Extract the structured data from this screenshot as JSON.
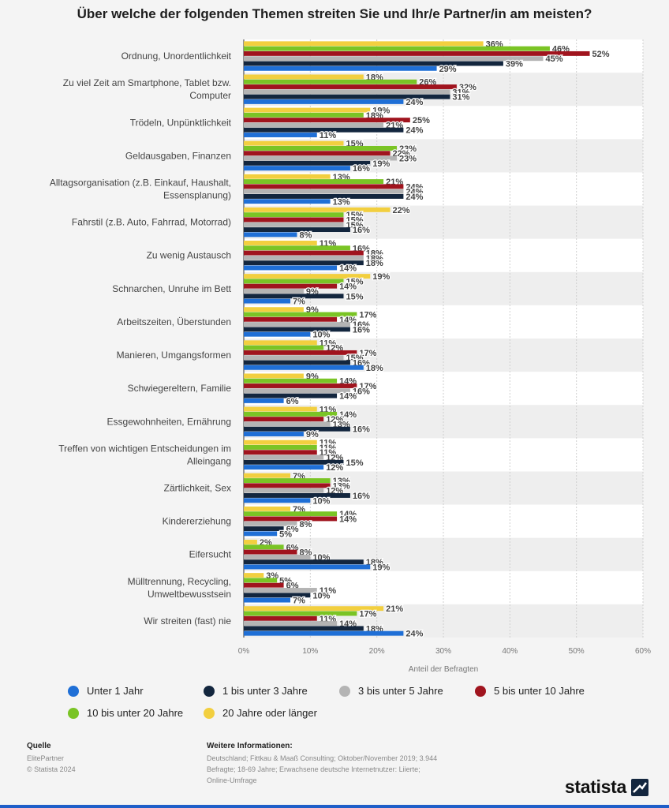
{
  "chart_data": {
    "type": "bar",
    "orientation": "horizontal",
    "title": "Über welche der folgenden Themen streiten Sie und Ihr/e Partner/in am meisten?",
    "xlabel": "Anteil der Befragten",
    "xlim": [
      0,
      60
    ],
    "ticks": [
      "0%",
      "10%",
      "20%",
      "30%",
      "40%",
      "50%",
      "60%"
    ],
    "unit": "%",
    "categories": [
      "Ordnung, Unordentlichkeit",
      "Zu viel Zeit am Smartphone, Tablet bzw. Computer",
      "Trödeln, Unpünktlichkeit",
      "Geldausgaben, Finanzen",
      "Alltagsorganisation (z.B. Einkauf, Haushalt, Essensplanung)",
      "Fahrstil (z.B. Auto, Fahrrad, Motorrad)",
      "Zu wenig Austausch",
      "Schnarchen, Unruhe im Bett",
      "Arbeitszeiten, Überstunden",
      "Manieren, Umgangsformen",
      "Schwiegereltern, Familie",
      "Essgewohnheiten, Ernährung",
      "Treffen von wichtigen Entscheidungen im Alleingang",
      "Zärtlichkeit, Sex",
      "Kindererziehung",
      "Eifersucht",
      "Mülltrennung, Recycling, Umweltbewusstsein",
      "Wir streiten (fast) nie"
    ],
    "category_lines": [
      [
        "Ordnung, Unordentlichkeit"
      ],
      [
        "Zu viel Zeit am Smartphone, Tablet bzw.",
        "Computer"
      ],
      [
        "Trödeln, Unpünktlichkeit"
      ],
      [
        "Geldausgaben, Finanzen"
      ],
      [
        "Alltagsorganisation (z.B. Einkauf, Haushalt,",
        "Essensplanung)"
      ],
      [
        "Fahrstil (z.B. Auto, Fahrrad, Motorrad)"
      ],
      [
        "Zu wenig Austausch"
      ],
      [
        "Schnarchen, Unruhe im Bett"
      ],
      [
        "Arbeitszeiten, Überstunden"
      ],
      [
        "Manieren, Umgangsformen"
      ],
      [
        "Schwiegereltern, Familie"
      ],
      [
        "Essgewohnheiten, Ernährung"
      ],
      [
        "Treffen von wichtigen Entscheidungen im",
        "Alleingang"
      ],
      [
        "Zärtlichkeit, Sex"
      ],
      [
        "Kindererziehung"
      ],
      [
        "Eifersucht"
      ],
      [
        "Mülltrennung, Recycling,",
        "Umweltbewusstsein"
      ],
      [
        "Wir streiten (fast) nie"
      ]
    ],
    "series": [
      {
        "name": "20 Jahre oder länger",
        "color": "#f2cf3f",
        "values": [
          36,
          18,
          19,
          15,
          13,
          22,
          11,
          19,
          9,
          11,
          9,
          11,
          11,
          7,
          7,
          2,
          3,
          21
        ]
      },
      {
        "name": "10 bis unter 20 Jahre",
        "color": "#7ac425",
        "values": [
          46,
          26,
          18,
          23,
          21,
          15,
          16,
          15,
          17,
          12,
          14,
          14,
          11,
          13,
          14,
          6,
          5,
          17
        ]
      },
      {
        "name": "5 bis unter 10 Jahre",
        "color": "#a0141e",
        "values": [
          52,
          32,
          25,
          22,
          24,
          15,
          18,
          14,
          14,
          17,
          17,
          12,
          11,
          13,
          14,
          8,
          6,
          11
        ]
      },
      {
        "name": "3 bis unter 5 Jahre",
        "color": "#b4b4b4",
        "values": [
          45,
          31,
          21,
          23,
          24,
          15,
          18,
          9,
          16,
          15,
          16,
          13,
          12,
          12,
          8,
          10,
          11,
          14
        ]
      },
      {
        "name": "1 bis unter 3 Jahre",
        "color": "#13263e",
        "values": [
          39,
          31,
          24,
          19,
          24,
          16,
          18,
          15,
          16,
          16,
          14,
          16,
          15,
          16,
          6,
          18,
          10,
          18
        ]
      },
      {
        "name": "Unter 1 Jahr",
        "color": "#1f6fd6",
        "values": [
          29,
          24,
          11,
          16,
          13,
          8,
          14,
          7,
          10,
          18,
          6,
          9,
          12,
          10,
          5,
          19,
          7,
          24
        ]
      }
    ],
    "legend": {
      "position": "bottom",
      "order": [
        "Unter 1 Jahr",
        "1 bis unter 3 Jahre",
        "3 bis unter 5 Jahre",
        "5 bis unter 10 Jahre",
        "10 bis unter 20 Jahre",
        "20 Jahre oder länger"
      ]
    },
    "grid": true
  },
  "footer": {
    "source_label": "Quelle",
    "source_lines": "ElitePartner\n© Statista 2024",
    "info_label": "Weitere Informationen:",
    "info_lines": "Deutschland; Fittkau & Maaß Consulting; Oktober/November 2019; 3.944\nBefragte; 18-69 Jahre; Erwachsene deutsche Internetnutzer: Liierte;\nOnline-Umfrage"
  },
  "brand": {
    "name": "statista",
    "color": "#1f5ec8"
  }
}
